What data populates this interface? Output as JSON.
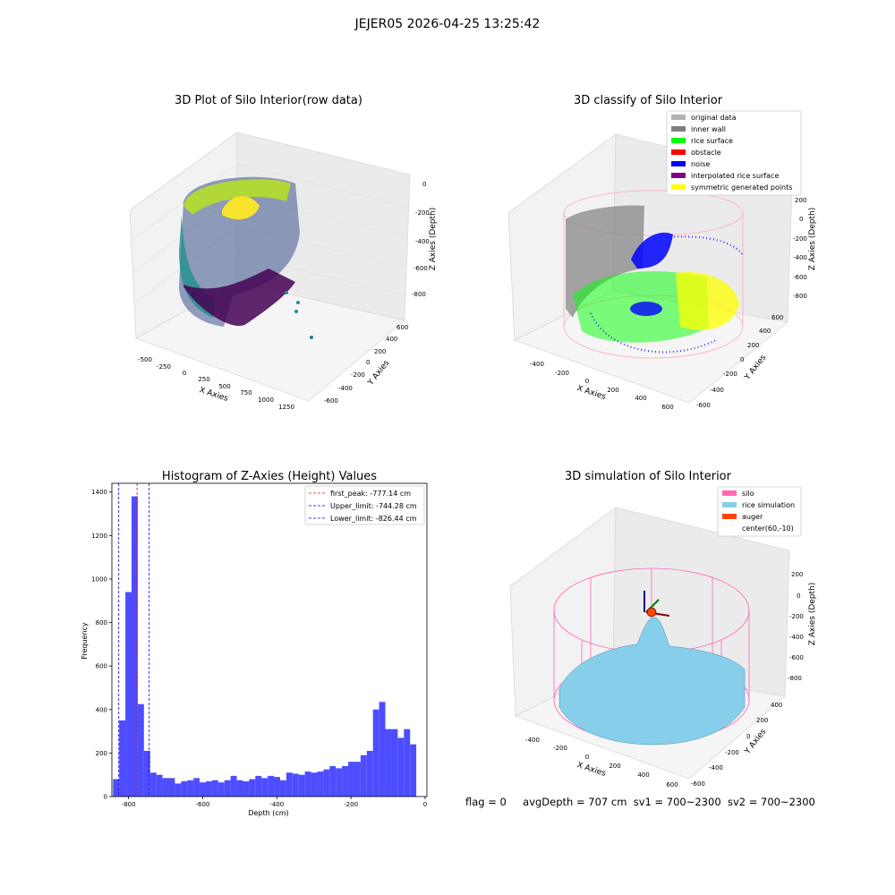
{
  "suptitle": "JEJER05 2026-04-25 13:25:42",
  "footer": {
    "flag": "flag = 0",
    "avgDepth": "avgDepth = 707 cm",
    "sv1": "sv1 = 700~2300",
    "sv2": "sv2 = 700~2300"
  },
  "colors": {
    "original_data": "#b3b3b3",
    "inner_wall": "#808080",
    "rice_surface": "#00ff00",
    "obstacle": "#ff0000",
    "noise": "#0000ff",
    "interpolated_rice_surface": "#800080",
    "symmetric_generated_points": "#ffff00",
    "silo": "#ff69b4",
    "rice_simulation": "#87ceeb",
    "auger": "#ff4500",
    "histogram_bar": "#4d4dff",
    "first_peak_line": "#ff0000",
    "limit_line": "#0000ff"
  },
  "chart_data": [
    {
      "type": "scatter",
      "title": "3D Plot of Silo Interior(row data)",
      "xlabel": "X Axies",
      "ylabel": "Y Axies",
      "zlabel": "Z Axies (Depth)",
      "x_ticks": [
        "-500",
        "-250",
        "0",
        "250",
        "500",
        "750",
        "1000",
        "1250"
      ],
      "y_ticks": [
        "-600",
        "-400",
        "-200",
        "0",
        "200",
        "400",
        "600"
      ],
      "z_ticks": [
        "0",
        "-200",
        "-400",
        "-600",
        "-800"
      ],
      "colormap": "viridis"
    },
    {
      "type": "scatter",
      "title": "3D classify of Silo Interior",
      "xlabel": "X Axies",
      "ylabel": "Y Axies",
      "zlabel": "Z Axies (Depth)",
      "x_ticks": [
        "-400",
        "-200",
        "0",
        "200",
        "400",
        "600"
      ],
      "y_ticks": [
        "-600",
        "-400",
        "-200",
        "0",
        "200",
        "400",
        "600"
      ],
      "z_ticks": [
        "200",
        "0",
        "-200",
        "-400",
        "-600",
        "-800"
      ],
      "legend": [
        "original data",
        "inner wall",
        "rice surface",
        "obstacle",
        "noise",
        "interpolated rice surface",
        "symmetric generated points"
      ],
      "legend_position": "upper right"
    },
    {
      "type": "bar",
      "title": "Histogram of Z-Axies (Height) Values",
      "xlabel": "Depth (cm)",
      "ylabel": "Frequency",
      "xlim": [
        -845,
        5
      ],
      "ylim": [
        0,
        1440
      ],
      "x_ticks": [
        -800,
        -600,
        -400,
        -200,
        0
      ],
      "y_ticks": [
        0,
        200,
        400,
        600,
        800,
        1000,
        1200,
        1400
      ],
      "bin_start": -842,
      "bin_width": 16.7,
      "values": [
        80,
        350,
        940,
        1380,
        425,
        210,
        110,
        100,
        85,
        85,
        60,
        70,
        75,
        85,
        65,
        70,
        75,
        65,
        75,
        95,
        75,
        70,
        80,
        95,
        85,
        95,
        90,
        75,
        110,
        105,
        100,
        115,
        110,
        115,
        125,
        140,
        130,
        140,
        160,
        160,
        190,
        210,
        400,
        435,
        310,
        310,
        270,
        310,
        240
      ],
      "lines": [
        {
          "label": "first_peak: -777.14 cm",
          "x": -777.14,
          "color": "#ff0000"
        },
        {
          "label": "Upper_limit: -744.28 cm",
          "x": -744.28,
          "color": "#0000ff"
        },
        {
          "label": "Lower_limit: -826.44 cm",
          "x": -826.44,
          "color": "#0000ff"
        }
      ],
      "legend_position": "upper right"
    },
    {
      "type": "area",
      "title": "3D simulation of Silo Interior",
      "xlabel": "X Axies",
      "ylabel": "Y Axies",
      "zlabel": "Z Axies (Depth)",
      "x_ticks": [
        "-400",
        "-200",
        "0",
        "200",
        "400",
        "600"
      ],
      "y_ticks": [
        "-600",
        "-400",
        "-200",
        "0",
        "200",
        "400"
      ],
      "z_ticks": [
        "200",
        "0",
        "-200",
        "-400",
        "-600",
        "-800"
      ],
      "legend": [
        "silo",
        "rice simulation",
        "auger",
        "center(60,-10)"
      ],
      "legend_position": "upper right"
    }
  ]
}
